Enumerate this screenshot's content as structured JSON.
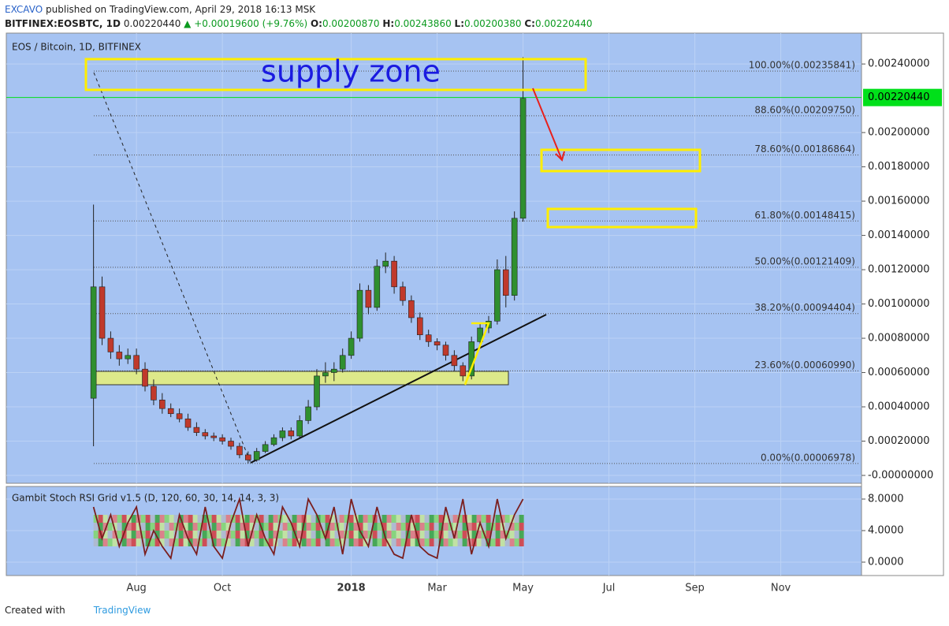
{
  "header": {
    "author": "EXCAVO",
    "published": "published on TradingView.com, April 29, 2018 16:13 MSK",
    "symbol": "BITFINEX:EOSBTC, 1D",
    "last": "0.00220440",
    "change": "▲ +0.00019600 (+9.76%)",
    "o_label": "O:",
    "o": "0.00200870",
    "h_label": "H:",
    "h": "0.00243860",
    "l_label": "L:",
    "l": "0.00200380",
    "c_label": "C:",
    "c": "0.00220440"
  },
  "footer": {
    "created": "Created with",
    "brand": "TradingView"
  },
  "chart_data": {
    "type": "candlestick",
    "title": "EOS / Bitcoin, 1D, BITFINEX",
    "annotation": "supply zone",
    "up_color": "#2f8f2f",
    "down_color": "#c0392b",
    "grid": true,
    "x": [
      7.0,
      7.2,
      7.4,
      7.6,
      7.8,
      8.0,
      8.2,
      8.4,
      8.6,
      8.8,
      9.0,
      9.2,
      9.4,
      9.6,
      9.8,
      10.0,
      10.2,
      10.4,
      10.6,
      10.8,
      11.0,
      11.2,
      11.4,
      11.6,
      11.8,
      12.0,
      12.2,
      12.4,
      12.6,
      12.8,
      13.0,
      13.2,
      13.4,
      13.6,
      13.8,
      14.0,
      14.2,
      14.4,
      14.6,
      14.8,
      15.0,
      15.2,
      15.4,
      15.6,
      15.8,
      16.0,
      16.2,
      16.4,
      16.6,
      16.8,
      17.0
    ],
    "open": [
      0.00045,
      0.0011,
      0.0008,
      0.00072,
      0.00068,
      0.0007,
      0.00062,
      0.00052,
      0.00044,
      0.00039,
      0.00036,
      0.00033,
      0.00028,
      0.00025,
      0.00023,
      0.00022,
      0.0002,
      0.00017,
      0.00012,
      9e-05,
      0.00014,
      0.00018,
      0.00022,
      0.00026,
      0.00023,
      0.00032,
      0.0004,
      0.00058,
      0.0006,
      0.00062,
      0.0007,
      0.0008,
      0.00108,
      0.00098,
      0.00122,
      0.00125,
      0.0011,
      0.00102,
      0.00092,
      0.00082,
      0.00078,
      0.00076,
      0.0007,
      0.00064,
      0.00058,
      0.00078,
      0.00086,
      0.0009,
      0.0012,
      0.00105,
      0.0015
    ],
    "high": [
      0.00158,
      0.00116,
      0.00084,
      0.00076,
      0.00074,
      0.00074,
      0.00066,
      0.00056,
      0.00048,
      0.00042,
      0.00039,
      0.00036,
      0.00031,
      0.00027,
      0.00025,
      0.00024,
      0.00022,
      0.00019,
      0.00014,
      0.00016,
      0.0002,
      0.00024,
      0.00028,
      0.00028,
      0.00035,
      0.00044,
      0.00062,
      0.00066,
      0.00066,
      0.00074,
      0.00084,
      0.00112,
      0.00111,
      0.00126,
      0.0013,
      0.00128,
      0.00113,
      0.00105,
      0.00095,
      0.00085,
      0.0008,
      0.00078,
      0.00073,
      0.00066,
      0.00081,
      0.00089,
      0.00093,
      0.00126,
      0.00128,
      0.00154,
      0.00244
    ],
    "low": [
      0.00017,
      0.00076,
      0.00068,
      0.00064,
      0.00065,
      0.00059,
      0.00049,
      0.00041,
      0.00036,
      0.00034,
      0.00031,
      0.00026,
      0.00023,
      0.00021,
      0.0002,
      0.00018,
      0.00015,
      0.0001,
      7e-05,
      8e-05,
      0.00013,
      0.00017,
      0.0002,
      0.00021,
      0.00022,
      0.0003,
      0.00038,
      0.00054,
      0.00055,
      0.0006,
      0.00068,
      0.00078,
      0.00094,
      0.00096,
      0.00118,
      0.00106,
      0.00099,
      0.00089,
      0.00079,
      0.00075,
      0.00073,
      0.00067,
      0.00061,
      0.00055,
      0.00056,
      0.00076,
      0.00083,
      0.00088,
      0.00098,
      0.00102,
      0.00148
    ],
    "close": [
      0.0011,
      0.0008,
      0.00072,
      0.00068,
      0.0007,
      0.00062,
      0.00052,
      0.00044,
      0.00039,
      0.00036,
      0.00033,
      0.00028,
      0.00025,
      0.00023,
      0.00022,
      0.0002,
      0.00017,
      0.00012,
      9e-05,
      0.00014,
      0.00018,
      0.00022,
      0.00026,
      0.00023,
      0.00032,
      0.0004,
      0.00058,
      0.0006,
      0.00062,
      0.0007,
      0.0008,
      0.00108,
      0.00098,
      0.00122,
      0.00125,
      0.0011,
      0.00102,
      0.00092,
      0.00082,
      0.00078,
      0.00076,
      0.0007,
      0.00064,
      0.00058,
      0.00078,
      0.00086,
      0.0009,
      0.0012,
      0.00105,
      0.0015,
      0.0022
    ],
    "xlim": [
      4.97,
      24.88
    ],
    "xticks": [
      {
        "value": 8,
        "label": "Aug"
      },
      {
        "value": 10,
        "label": "Oct"
      },
      {
        "value": 13,
        "label": "2018"
      },
      {
        "value": 15,
        "label": "Mar"
      },
      {
        "value": 17,
        "label": "May"
      },
      {
        "value": 19,
        "label": "Jul"
      },
      {
        "value": 21,
        "label": "Sep"
      },
      {
        "value": 23,
        "label": "Nov"
      }
    ],
    "ylim": [
      -4.6e-05,
      0.00258
    ],
    "yticks": [
      {
        "value": 0,
        "label": "-0.00000000"
      },
      {
        "value": 0.0002,
        "label": "0.00020000"
      },
      {
        "value": 0.0004,
        "label": "0.00040000"
      },
      {
        "value": 0.0006,
        "label": "0.00060000"
      },
      {
        "value": 0.0008,
        "label": "0.00080000"
      },
      {
        "value": 0.001,
        "label": "0.00100000"
      },
      {
        "value": 0.0012,
        "label": "0.00120000"
      },
      {
        "value": 0.0014,
        "label": "0.00140000"
      },
      {
        "value": 0.0016,
        "label": "0.00160000"
      },
      {
        "value": 0.0018,
        "label": "0.00180000"
      },
      {
        "value": 0.002,
        "label": "0.00200000"
      },
      {
        "value": 0.0024,
        "label": "0.00240000"
      }
    ],
    "price_line": {
      "value": 0.0022044,
      "label": "0.00220440",
      "color": "#00e01a"
    },
    "fib": [
      {
        "value": 0.00235841,
        "label": "100.00%(0.00235841)"
      },
      {
        "value": 0.0020975,
        "label": "88.60%(0.00209750)"
      },
      {
        "value": 0.00186864,
        "label": "78.60%(0.00186864)"
      },
      {
        "value": 0.00148415,
        "label": "61.80%(0.00148415)"
      },
      {
        "value": 0.00121409,
        "label": "50.00%(0.00121409)"
      },
      {
        "value": 0.00094404,
        "label": "38.20%(0.00094404)"
      },
      {
        "value": 0.0006099,
        "label": "23.60%(0.00060990)"
      },
      {
        "value": 6.978e-05,
        "label": "0.00%(0.00006978)"
      }
    ],
    "indicator": {
      "title": "Gambit Stoch RSI Grid v1.5 (D, 120, 60, 30, 14, 14, 3, 3)",
      "color": "#7a1f1f",
      "values": [
        7,
        3,
        6,
        2,
        5,
        7,
        1,
        4,
        2,
        0.5,
        6,
        3,
        1,
        7,
        2,
        0.5,
        5,
        8,
        2,
        6,
        3,
        1,
        7,
        5,
        2,
        8,
        6,
        3,
        7,
        1,
        8,
        4,
        2,
        7,
        3,
        1,
        0.5,
        6,
        2,
        1,
        0.5,
        7,
        3,
        8,
        1,
        5,
        2,
        8,
        3,
        6,
        8
      ],
      "ylim": [
        -1.7,
        9.6
      ],
      "yticks": [
        {
          "value": 8,
          "label": "8.0000"
        },
        {
          "value": 4,
          "label": "4.0000"
        },
        {
          "value": 0,
          "label": "0.0000"
        }
      ]
    }
  }
}
